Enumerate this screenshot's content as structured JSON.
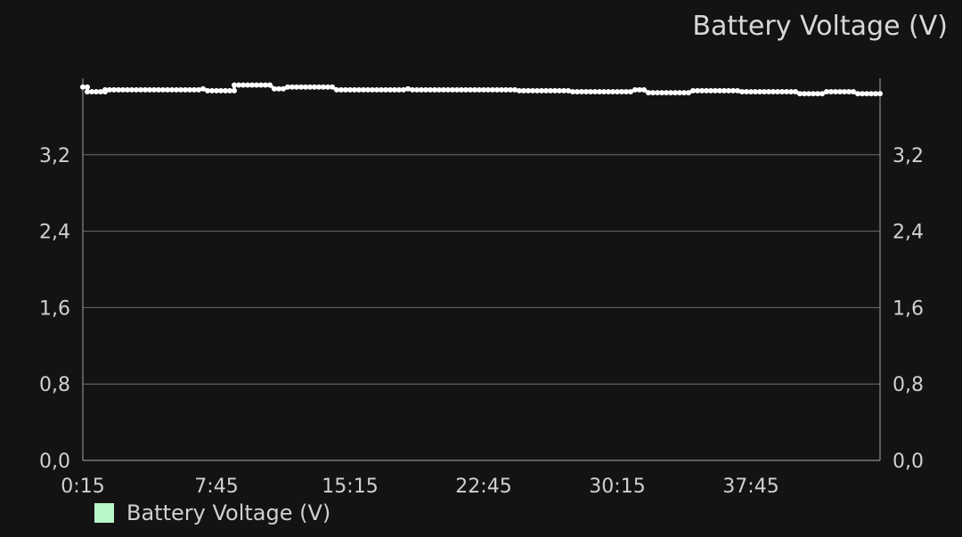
{
  "chart_data": {
    "type": "line",
    "title": "Battery Voltage (V)",
    "ylim": [
      0,
      4.0
    ],
    "yticks": [
      0.0,
      0.8,
      1.6,
      2.4,
      3.2
    ],
    "ytick_labels": [
      "0,0",
      "0,8",
      "1,6",
      "2,4",
      "3,2"
    ],
    "xticks": [
      "0:15",
      "7:45",
      "15:15",
      "22:45",
      "30:15",
      "37:45"
    ],
    "xtick_minutes": [
      0.25,
      7.75,
      15.25,
      22.75,
      30.25,
      37.75
    ],
    "x_unit": "minutes",
    "xlim": [
      0.25,
      45.0
    ],
    "grid": true,
    "legend_position": "bottom-left",
    "series": [
      {
        "name": "Battery Voltage (V)",
        "line_color": "#ffffff",
        "legend_color": "#b9f6ca",
        "points": [
          [
            0.25,
            3.91
          ],
          [
            0.5,
            3.91
          ],
          [
            0.5,
            3.86
          ],
          [
            1.5,
            3.86
          ],
          [
            1.5,
            3.88
          ],
          [
            6.75,
            3.88
          ],
          [
            7,
            3.89
          ],
          [
            7.25,
            3.87
          ],
          [
            8.75,
            3.87
          ],
          [
            8.75,
            3.93
          ],
          [
            10.75,
            3.93
          ],
          [
            11,
            3.89
          ],
          [
            11.5,
            3.89
          ],
          [
            11.75,
            3.91
          ],
          [
            14.25,
            3.91
          ],
          [
            14.5,
            3.88
          ],
          [
            18.25,
            3.88
          ],
          [
            18.5,
            3.89
          ],
          [
            18.75,
            3.88
          ],
          [
            24.5,
            3.88
          ],
          [
            24.75,
            3.87
          ],
          [
            27.5,
            3.87
          ],
          [
            27.75,
            3.86
          ],
          [
            31,
            3.86
          ],
          [
            31.25,
            3.88
          ],
          [
            31.75,
            3.88
          ],
          [
            32,
            3.85
          ],
          [
            34.25,
            3.85
          ],
          [
            34.5,
            3.87
          ],
          [
            37,
            3.87
          ],
          [
            37.25,
            3.86
          ],
          [
            40.25,
            3.86
          ],
          [
            40.5,
            3.84
          ],
          [
            41.75,
            3.84
          ],
          [
            42,
            3.86
          ],
          [
            43.5,
            3.86
          ],
          [
            43.75,
            3.84
          ],
          [
            45,
            3.84
          ]
        ]
      }
    ]
  }
}
